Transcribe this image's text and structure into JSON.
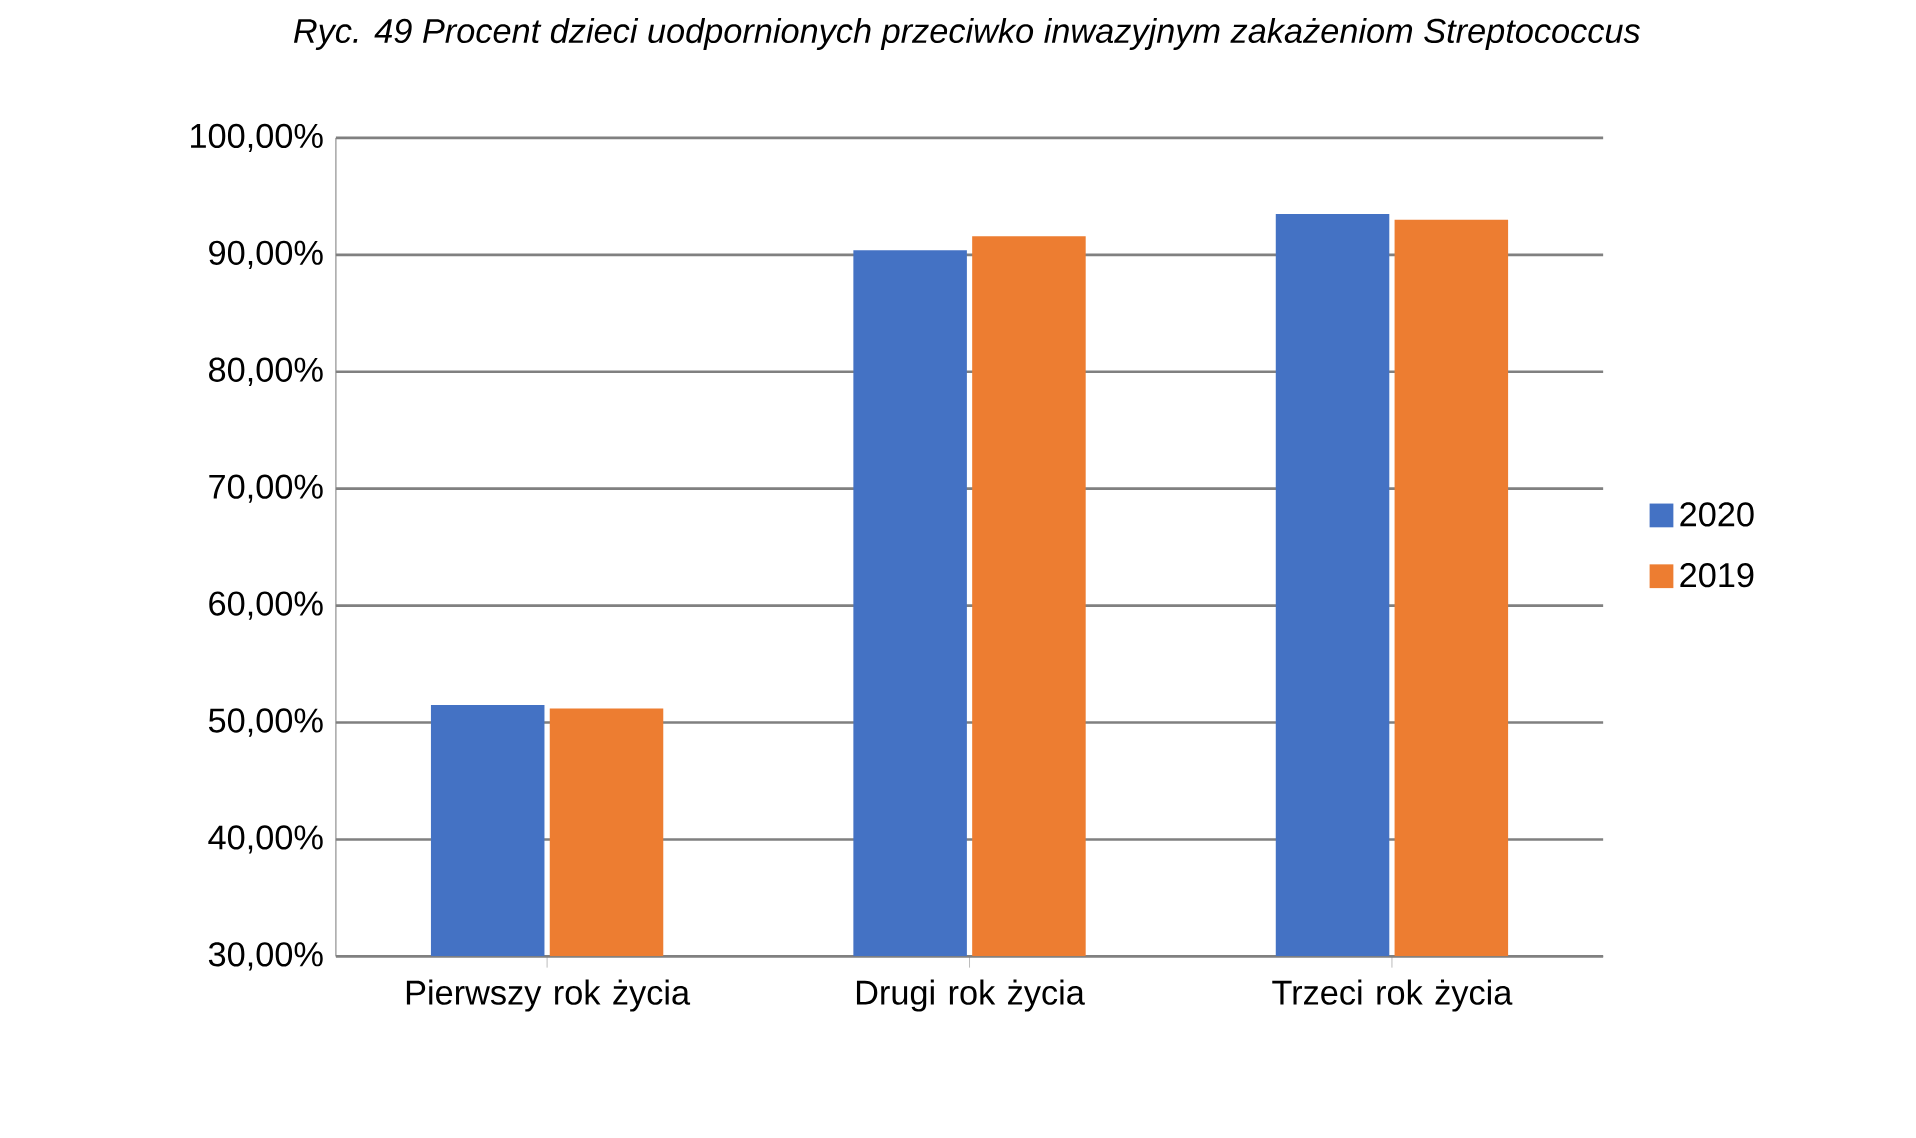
{
  "chart_data": {
    "type": "bar",
    "title": "Ryc. 49 Procent dzieci uodpornionych przeciwko inwazyjnym zakażeniom Streptococcus",
    "categories": [
      "Pierwszy rok życia",
      "Drugi rok życia",
      "Trzeci rok życia"
    ],
    "series": [
      {
        "name": "2020",
        "color": "#4472c4",
        "values": [
          51.5,
          90.4,
          93.5
        ]
      },
      {
        "name": "2019",
        "color": "#ed7d31",
        "values": [
          51.2,
          91.6,
          93.0
        ]
      }
    ],
    "ylim": [
      30,
      100
    ],
    "yticks": [
      {
        "value": 30,
        "label": "30,00%"
      },
      {
        "value": 40,
        "label": "40,00%"
      },
      {
        "value": 50,
        "label": "50,00%"
      },
      {
        "value": 60,
        "label": "60,00%"
      },
      {
        "value": 70,
        "label": "70,00%"
      },
      {
        "value": 80,
        "label": "80,00%"
      },
      {
        "value": 90,
        "label": "90,00%"
      },
      {
        "value": 100,
        "label": "100,00%"
      }
    ],
    "grid": "y",
    "legend": "right"
  }
}
